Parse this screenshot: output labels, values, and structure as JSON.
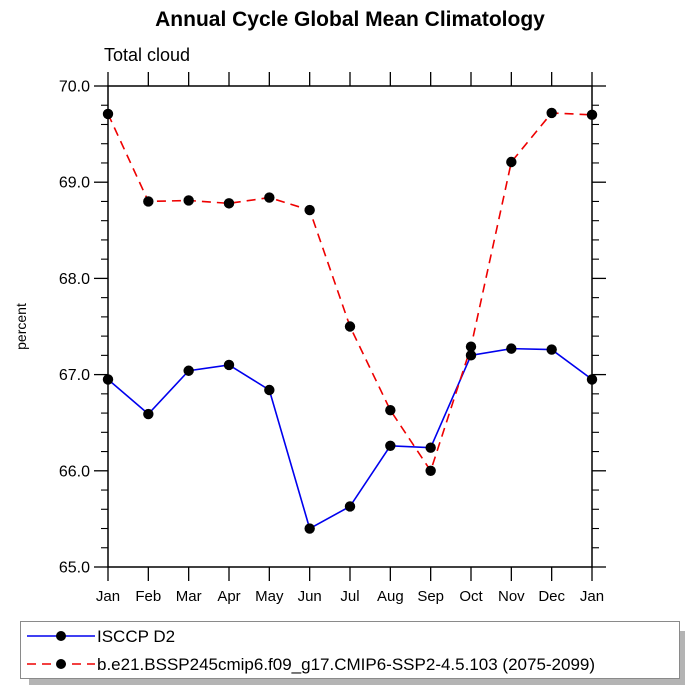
{
  "title": "Annual Cycle Global Mean Climatology",
  "subtitle": "Total cloud",
  "legend": {
    "position": "bottom",
    "items": [
      {
        "label": "ISCCP D2",
        "color": "#0000ee",
        "line_style": "solid",
        "marker": "filled-circle",
        "marker_color": "#000000"
      },
      {
        "label": "b.e21.BSSP245cmip6.f09_g17.CMIP6-SSP2-4.5.103 (2075-2099)",
        "color": "#ee0000",
        "line_style": "dashed",
        "marker": "filled-circle",
        "marker_color": "#000000"
      }
    ]
  },
  "chart_data": {
    "type": "line",
    "title": "Annual Cycle Global Mean Climatology",
    "subtitle": "Total cloud",
    "xlabel": "",
    "ylabel": "percent",
    "categories": [
      "Jan",
      "Feb",
      "Mar",
      "Apr",
      "May",
      "Jun",
      "Jul",
      "Aug",
      "Sep",
      "Oct",
      "Nov",
      "Dec",
      "Jan"
    ],
    "ylim": [
      65.0,
      70.0
    ],
    "y_ticks": [
      65.0,
      66.0,
      67.0,
      68.0,
      69.0,
      70.0
    ],
    "y_tick_labels": [
      "65.0",
      "66.0",
      "67.0",
      "68.0",
      "69.0",
      "70.0"
    ],
    "y_minor_step": 0.2,
    "grid": false,
    "frame": true,
    "legend_position": "bottom",
    "series": [
      {
        "name": "ISCCP D2",
        "color": "#0000ee",
        "line_style": "solid",
        "marker": "filled-circle",
        "marker_color": "#000000",
        "values": [
          66.95,
          66.59,
          67.04,
          67.1,
          66.84,
          65.4,
          65.63,
          66.26,
          66.24,
          67.2,
          67.27,
          67.26,
          66.95
        ]
      },
      {
        "name": "b.e21.BSSP245cmip6.f09_g17.CMIP6-SSP2-4.5.103 (2075-2099)",
        "color": "#ee0000",
        "line_style": "dashed",
        "marker": "filled-circle",
        "marker_color": "#000000",
        "values": [
          69.71,
          68.8,
          68.81,
          68.78,
          68.84,
          68.71,
          67.5,
          66.63,
          66.0,
          67.29,
          69.21,
          69.72,
          69.7
        ]
      }
    ]
  }
}
